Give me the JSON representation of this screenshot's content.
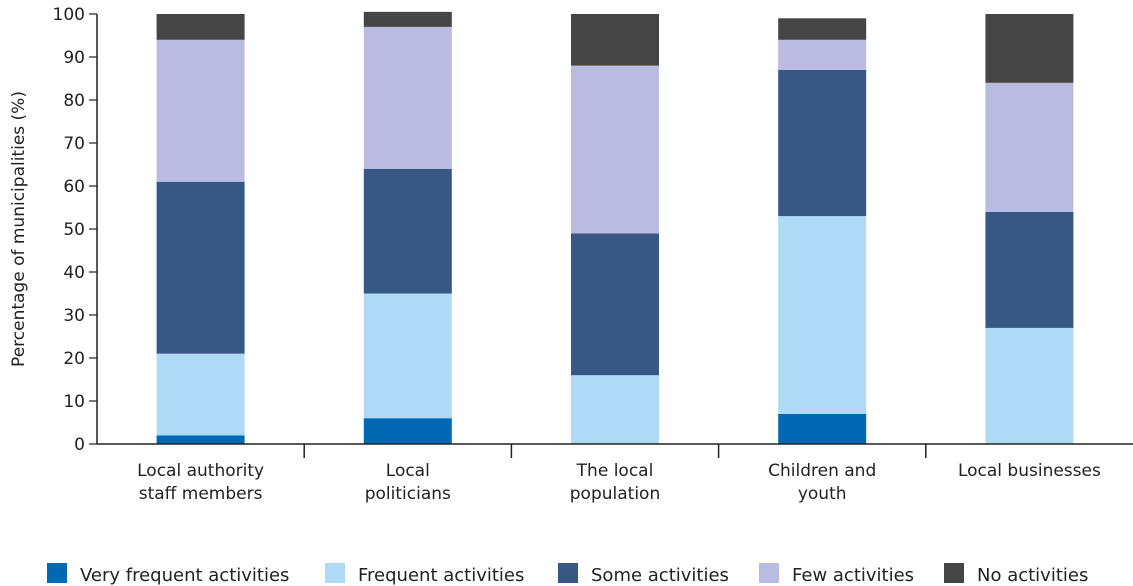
{
  "chart_data": {
    "type": "bar",
    "stacked": true,
    "ylabel": "Percentage of municipalities (%)",
    "ylim": [
      0,
      100
    ],
    "yticks": [
      0,
      10,
      20,
      30,
      40,
      50,
      60,
      70,
      80,
      90,
      100
    ],
    "categories": [
      [
        "Local authority",
        "staff members"
      ],
      [
        "Local",
        "politicians"
      ],
      [
        "The local",
        "population"
      ],
      [
        "Children and",
        "youth"
      ],
      [
        "Local businesses"
      ]
    ],
    "series": [
      {
        "name": "Very frequent activities",
        "color": "#0069b4",
        "values": [
          2,
          6,
          0,
          7,
          0
        ]
      },
      {
        "name": "Frequent activities",
        "color": "#afdaf5",
        "values": [
          19,
          29,
          16,
          46,
          27
        ]
      },
      {
        "name": "Some activities",
        "color": "#375885",
        "values": [
          40,
          29,
          33,
          34,
          27
        ]
      },
      {
        "name": "Few activities",
        "color": "#babbe0",
        "values": [
          33,
          33,
          39,
          7,
          30
        ]
      },
      {
        "name": "No activities",
        "color": "#454545",
        "values": [
          6,
          3.5,
          12,
          5,
          16
        ]
      }
    ],
    "legend_position": "bottom",
    "grid": false
  }
}
